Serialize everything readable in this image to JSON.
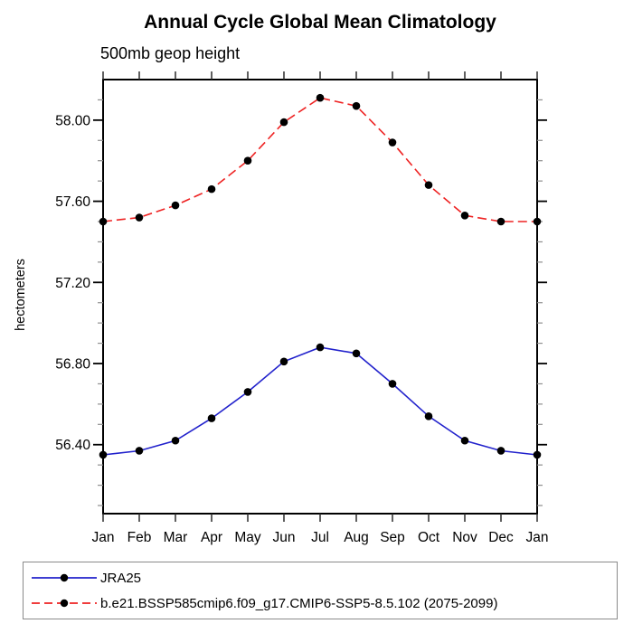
{
  "title": "Annual Cycle Global Mean Climatology",
  "subtitle": "500mb geop height",
  "y_axis": {
    "label": "hectometers",
    "tick_labels": [
      "58.00",
      "57.60",
      "57.20",
      "56.80",
      "56.40"
    ],
    "tick_values": [
      58.0,
      57.6,
      57.2,
      56.8,
      56.4
    ]
  },
  "x_axis": {
    "tick_labels": [
      "Jan",
      "Feb",
      "Mar",
      "Apr",
      "May",
      "Jun",
      "Jul",
      "Aug",
      "Sep",
      "Oct",
      "Nov",
      "Dec",
      "Jan"
    ]
  },
  "legend": {
    "entries": [
      {
        "label": "JRA25",
        "line_style": "solid",
        "line_color": "#2222cc",
        "marker": "filled-circle",
        "marker_color": "#000000"
      },
      {
        "label": "b.e21.BSSP585cmip6.f09_g17.CMIP6-SSP5-8.5.102 (2075-2099)",
        "line_style": "dashed",
        "line_color": "#ee2222",
        "marker": "filled-circle",
        "marker_color": "#000000"
      }
    ]
  },
  "chart_data": {
    "type": "line",
    "title": "Annual Cycle Global Mean Climatology",
    "subtitle": "500mb geop height",
    "xlabel": "",
    "ylabel": "hectometers",
    "categories": [
      "Jan",
      "Feb",
      "Mar",
      "Apr",
      "May",
      "Jun",
      "Jul",
      "Aug",
      "Sep",
      "Oct",
      "Nov",
      "Dec",
      "Jan"
    ],
    "series": [
      {
        "name": "JRA25",
        "color": "#2222cc",
        "style": "solid",
        "marker": "filled-circle",
        "marker_color": "#000000",
        "values": [
          56.35,
          56.37,
          56.42,
          56.53,
          56.66,
          56.81,
          56.88,
          56.85,
          56.7,
          56.54,
          56.42,
          56.37,
          56.35
        ]
      },
      {
        "name": "b.e21.BSSP585cmip6.f09_g17.CMIP6-SSP5-8.5.102 (2075-2099)",
        "color": "#ee2222",
        "style": "dashed",
        "marker": "filled-circle",
        "marker_color": "#000000",
        "values": [
          57.5,
          57.52,
          57.58,
          57.66,
          57.8,
          57.99,
          58.11,
          58.07,
          57.89,
          57.68,
          57.53,
          57.5,
          57.5
        ]
      }
    ],
    "ylim": [
      56.06,
      58.2
    ],
    "y_major_ticks": [
      56.4,
      56.8,
      57.2,
      57.6,
      58.0
    ],
    "y_minor_step": 0.1,
    "grid": false,
    "legend_position": "bottom-box"
  }
}
